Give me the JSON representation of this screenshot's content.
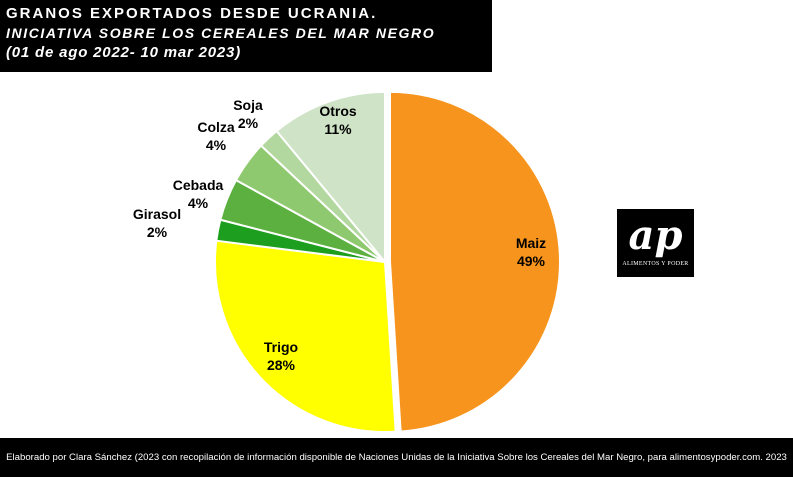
{
  "header": {
    "title": "GRANOS EXPORTADOS DESDE UCRANIA.",
    "subtitle": "INICIATIVA SOBRE LOS CEREALES  DEL MAR NEGRO",
    "period": "(01 de ago 2022- 10 mar 2023)"
  },
  "chart_data": {
    "type": "pie",
    "title": "GRANOS EXPORTADOS DESDE UCRANIA.",
    "slices": [
      {
        "name": "Maiz",
        "value": 49,
        "label": "49%",
        "color": "#f7941d"
      },
      {
        "name": "Trigo",
        "value": 28,
        "label": "28%",
        "color": "#ffff00"
      },
      {
        "name": "Girasol",
        "value": 2,
        "label": "2%",
        "color": "#1e9e1e"
      },
      {
        "name": "Cebada",
        "value": 4,
        "label": "4%",
        "color": "#5cb040"
      },
      {
        "name": "Colza",
        "value": 4,
        "label": "4%",
        "color": "#8fc96f"
      },
      {
        "name": "Soja",
        "value": 2,
        "label": "2%",
        "color": "#b2d8a0"
      },
      {
        "name": "Otros",
        "value": 11,
        "label": "11%",
        "color": "#cfe3c6"
      }
    ],
    "legend": "none"
  },
  "logo": {
    "mark": "ap",
    "text": "ALIMENTOS Y PODER"
  },
  "footer": {
    "credit": "Elaborado por Clara Sánchez (2023 con recopilación de información  disponible de Naciones Unidas de la Iniciativa Sobre los Cereales del Mar Negro, para alimentosypoder.com. 2023"
  }
}
